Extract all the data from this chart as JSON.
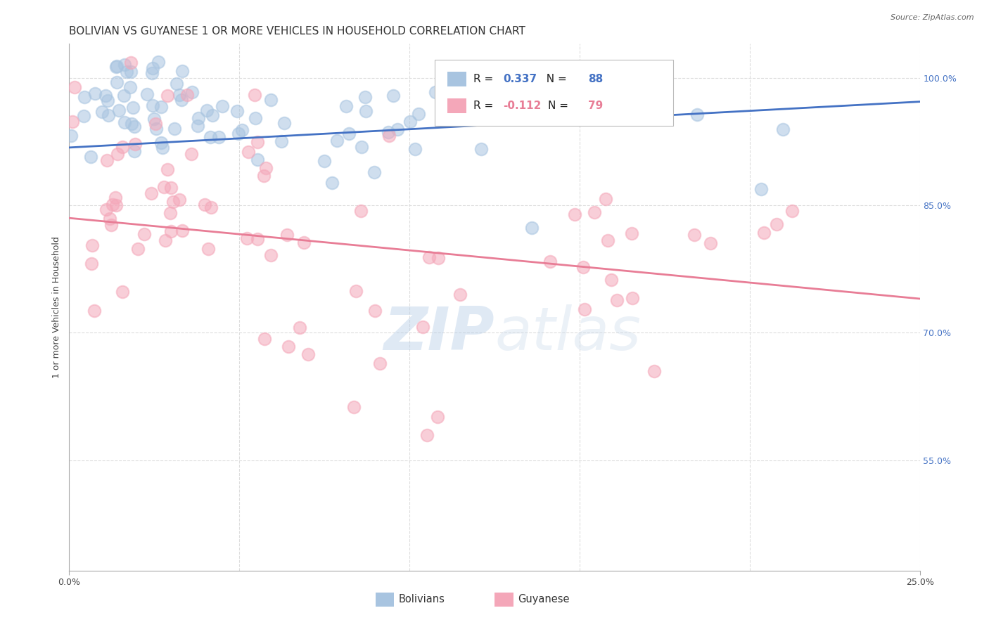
{
  "title": "BOLIVIAN VS GUYANESE 1 OR MORE VEHICLES IN HOUSEHOLD CORRELATION CHART",
  "source": "Source: ZipAtlas.com",
  "ylabel": "1 or more Vehicles in Household",
  "ytick_labels": [
    "100.0%",
    "85.0%",
    "70.0%",
    "55.0%"
  ],
  "ytick_values": [
    1.0,
    0.85,
    0.7,
    0.55
  ],
  "xlim": [
    0.0,
    0.25
  ],
  "ylim": [
    0.42,
    1.04
  ],
  "R_bolivian": 0.337,
  "N_bolivian": 88,
  "R_guyanese": -0.112,
  "N_guyanese": 79,
  "color_bolivian": "#a8c4e0",
  "color_guyanese": "#f4a7b9",
  "line_color_bolivian": "#4472c4",
  "line_color_guyanese": "#e87d96",
  "legend_label_bolivian": "Bolivians",
  "legend_label_guyanese": "Guyanese",
  "watermark_zip": "ZIP",
  "watermark_atlas": "atlas",
  "background_color": "#ffffff",
  "grid_color": "#dddddd",
  "title_fontsize": 11,
  "axis_label_fontsize": 9,
  "tick_fontsize": 9,
  "legend_fontsize": 11,
  "legend_color_bolivian": "#4472c4",
  "legend_color_guyanese": "#e87d96",
  "line_y0_bolivian": 0.918,
  "line_y1_bolivian": 0.972,
  "line_y0_guyanese": 0.835,
  "line_y1_guyanese": 0.74
}
